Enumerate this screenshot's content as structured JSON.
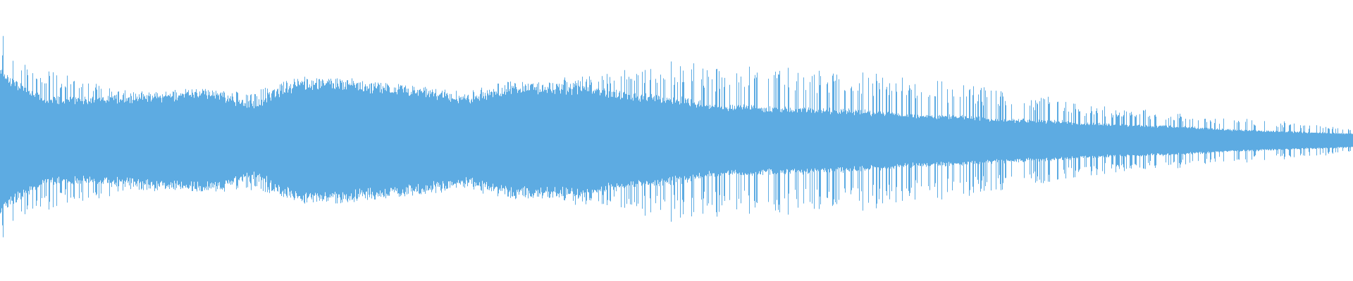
{
  "waveform": {
    "color": "#5dabe2",
    "background": "#ffffff",
    "body_envelope": [
      0.51,
      0.3,
      0.3,
      0.31,
      0.33,
      0.35,
      0.25,
      0.42,
      0.42,
      0.39,
      0.36,
      0.3,
      0.39,
      0.39,
      0.38,
      0.33,
      0.3,
      0.25,
      0.24,
      0.23,
      0.22,
      0.2,
      0.18,
      0.17,
      0.15,
      0.14,
      0.12,
      0.11,
      0.1,
      0.08,
      0.07,
      0.06,
      0.05
    ],
    "peak_envelope": [
      0.7,
      0.5,
      0.45,
      0.36,
      0.36,
      0.37,
      0.35,
      0.45,
      0.45,
      0.42,
      0.38,
      0.35,
      0.42,
      0.44,
      0.46,
      0.56,
      0.58,
      0.55,
      0.54,
      0.53,
      0.52,
      0.5,
      0.45,
      0.4,
      0.37,
      0.3,
      0.25,
      0.22,
      0.2,
      0.16,
      0.15,
      0.12,
      0.08
    ]
  }
}
